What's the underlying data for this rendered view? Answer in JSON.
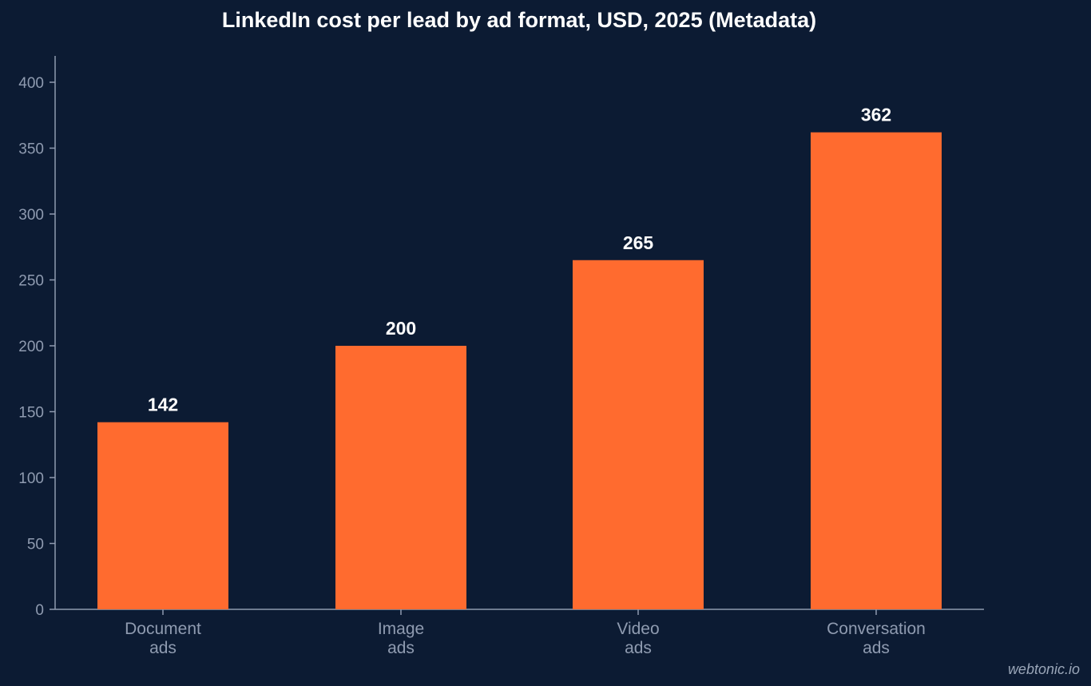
{
  "chart_data": {
    "type": "bar",
    "title": "LinkedIn cost per lead by ad format, USD, 2025 (Metadata)",
    "xlabel": "",
    "ylabel": "",
    "categories": [
      [
        "Document",
        "ads"
      ],
      [
        "Image",
        "ads"
      ],
      [
        "Video",
        "ads"
      ],
      [
        "Conversation",
        "ads"
      ]
    ],
    "values": [
      142,
      200,
      265,
      362
    ],
    "data_labels": [
      "142",
      "200",
      "265",
      "362"
    ],
    "ylim": [
      0,
      420
    ],
    "yticks": [
      0,
      50,
      100,
      150,
      200,
      250,
      300,
      350,
      400
    ],
    "grid": false,
    "legend": "none",
    "colors": {
      "background": "#0c1b33",
      "bar": "#ff6b2f",
      "axis": "#8f9bb0",
      "tick_text": "#8f9bb0",
      "data_label": "#ffffff",
      "title": "#ffffff"
    }
  },
  "watermark": "webtonic.io"
}
